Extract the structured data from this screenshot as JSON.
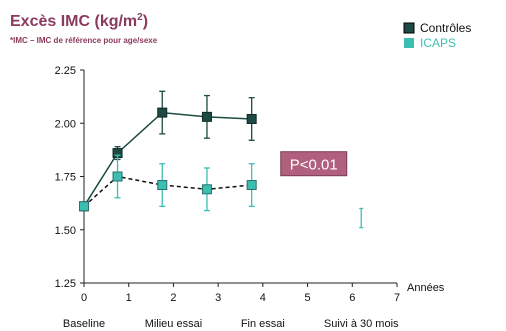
{
  "chart_data": {
    "type": "line",
    "title": "Excès IMC (kg/m",
    "title_sup": "2",
    "title_end": ")",
    "subtitle": "*IMC – IMC de référence pour age/sexe",
    "xlabel": "Années",
    "ylabel": "",
    "xlim": [
      0,
      7
    ],
    "ylim": [
      1.25,
      2.25
    ],
    "x_ticks": [
      0,
      1,
      2,
      3,
      4,
      5,
      6,
      7
    ],
    "y_ticks": [
      "1.25",
      "1.50",
      "1.75",
      "2.00",
      "2.25"
    ],
    "x_categories": [
      {
        "label": "Baseline",
        "x": 0
      },
      {
        "label": "Milieu essai",
        "x": 2
      },
      {
        "label": "Fin essai",
        "x": 4
      },
      {
        "label": "Suivi à 30 mois",
        "x": 6.2
      }
    ],
    "legend_position": "top-right",
    "series": [
      {
        "name": "Contrôles",
        "color": "#1d4a42",
        "line_style": "solid",
        "marker": "square",
        "x": [
          0,
          0.75,
          1.75,
          2.75,
          3.75
        ],
        "y": [
          1.61,
          1.86,
          2.05,
          2.03,
          2.02
        ],
        "err": [
          0,
          0.03,
          0.1,
          0.1,
          0.1
        ]
      },
      {
        "name": "ICAPS",
        "color": "#3cbfb3",
        "line_style": "dashed",
        "marker": "square",
        "x": [
          0,
          0.75,
          1.75,
          2.75,
          3.75
        ],
        "y": [
          1.61,
          1.75,
          1.71,
          1.69,
          1.71
        ],
        "err": [
          0,
          0.1,
          0.1,
          0.1,
          0.1
        ]
      }
    ],
    "followup_errorbar": {
      "x": 6.2,
      "low": 1.51,
      "high": 1.6,
      "color": "#3cbfb3"
    },
    "annotation": {
      "text": "P<0.01",
      "x": 4.4,
      "y": 1.81,
      "fill": "#b0607d",
      "border": "#7a3a55"
    }
  }
}
